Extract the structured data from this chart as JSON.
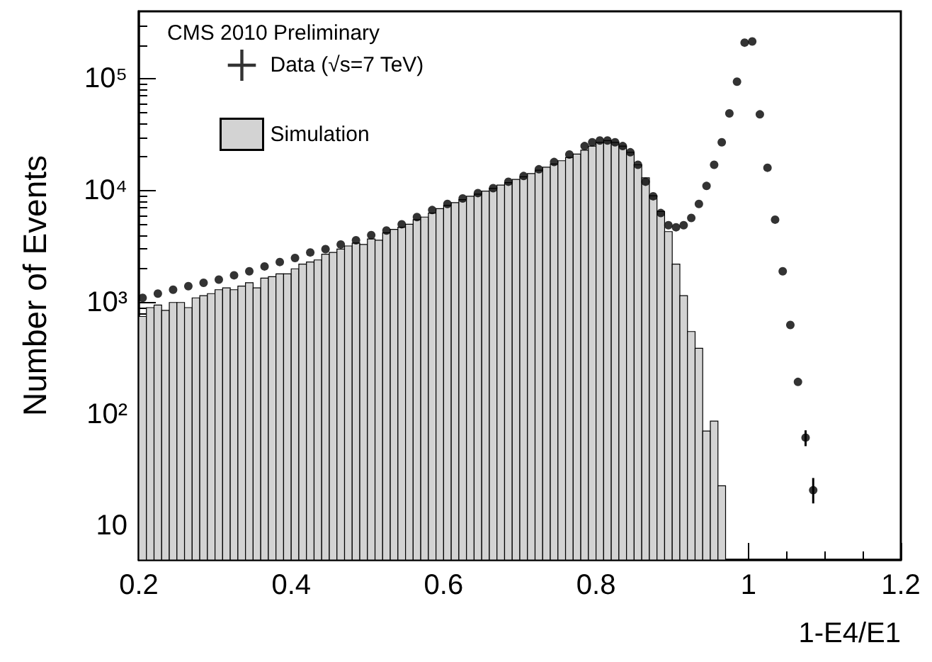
{
  "chart_data": {
    "type": "histogram",
    "xlabel": "1-E4/E1",
    "ylabel": "Number of Events",
    "legend_title": "CMS 2010 Preliminary",
    "legend": "top left",
    "log": "y",
    "grid": false,
    "marker": "circle",
    "xlim": [
      0.2,
      1.2
    ],
    "xticks": [
      0.2,
      0.4,
      0.6,
      0.8,
      1,
      1.2
    ],
    "ylim": [
      5,
      400000
    ],
    "yticks": [
      {
        "value": 10,
        "label": "10"
      },
      {
        "value": 100,
        "label": "10²"
      },
      {
        "value": 1000,
        "label": "10³"
      },
      {
        "value": 10000,
        "label": "10⁴"
      },
      {
        "value": 100000,
        "label": "10⁵"
      }
    ],
    "series": [
      {
        "name": "Simulation",
        "color": "#d3d3d3",
        "bins": [
          0.2,
          0.21,
          0.22,
          0.23,
          0.24,
          0.25,
          0.26,
          0.27,
          0.28,
          0.29,
          0.3,
          0.31,
          0.32,
          0.33,
          0.34,
          0.35,
          0.36,
          0.37,
          0.38,
          0.39,
          0.4,
          0.41,
          0.42,
          0.43,
          0.44,
          0.45,
          0.46,
          0.47,
          0.48,
          0.49,
          0.5,
          0.51,
          0.52,
          0.53,
          0.54,
          0.55,
          0.56,
          0.57,
          0.58,
          0.59,
          0.6,
          0.61,
          0.62,
          0.63,
          0.64,
          0.65,
          0.66,
          0.67,
          0.68,
          0.69,
          0.7,
          0.71,
          0.72,
          0.73,
          0.74,
          0.75,
          0.76,
          0.77,
          0.78,
          0.79,
          0.8,
          0.81,
          0.82,
          0.83,
          0.84,
          0.85,
          0.86,
          0.87,
          0.88,
          0.89,
          0.9,
          0.91,
          0.92,
          0.93,
          0.94,
          0.95,
          0.96,
          0.97
        ],
        "values": [
          750,
          900,
          950,
          850,
          1000,
          1000,
          900,
          1100,
          1150,
          1200,
          1300,
          1350,
          1300,
          1400,
          1500,
          1350,
          1650,
          1700,
          1800,
          1800,
          2000,
          2200,
          2300,
          2400,
          2700,
          2800,
          3000,
          3200,
          3400,
          3300,
          3700,
          3600,
          4200,
          4500,
          4700,
          5000,
          5500,
          5800,
          6300,
          6900,
          7400,
          7800,
          8300,
          8900,
          9300,
          9900,
          10500,
          11200,
          11800,
          12600,
          13300,
          14200,
          15200,
          16200,
          17300,
          18500,
          19800,
          21200,
          23000,
          25000,
          27000,
          28000,
          27000,
          25000,
          22000,
          17000,
          13000,
          9000,
          6500,
          4300,
          2200,
          1150,
          550,
          390,
          71,
          87,
          23
        ]
      },
      {
        "type": "scatter",
        "name": "Data (√s=7 TeV)",
        "color": "#000000",
        "x": [
          0.205,
          0.225,
          0.245,
          0.265,
          0.285,
          0.305,
          0.325,
          0.345,
          0.365,
          0.385,
          0.405,
          0.425,
          0.445,
          0.465,
          0.485,
          0.505,
          0.525,
          0.545,
          0.565,
          0.585,
          0.605,
          0.625,
          0.645,
          0.665,
          0.685,
          0.705,
          0.725,
          0.745,
          0.765,
          0.785,
          0.795,
          0.805,
          0.815,
          0.825,
          0.835,
          0.845,
          0.855,
          0.865,
          0.875,
          0.885,
          0.895,
          0.905,
          0.915,
          0.925,
          0.935,
          0.945,
          0.955,
          0.965,
          0.975,
          0.985,
          0.995,
          1.005,
          1.015,
          1.025,
          1.035,
          1.045,
          1.055,
          1.065,
          1.075,
          1.085
        ],
        "values": [
          1100,
          1200,
          1300,
          1400,
          1500,
          1600,
          1750,
          1900,
          2100,
          2300,
          2500,
          2800,
          3000,
          3300,
          3600,
          4000,
          4400,
          5000,
          5800,
          6700,
          7600,
          8500,
          9500,
          10500,
          12000,
          13500,
          15500,
          18000,
          21000,
          25000,
          27000,
          28000,
          28000,
          27000,
          25000,
          22000,
          17000,
          12000,
          8900,
          6300,
          4900,
          4700,
          4900,
          5700,
          7600,
          11000,
          17000,
          27000,
          49000,
          94000,
          210000,
          215000,
          48000,
          16000,
          5500,
          1900,
          630,
          195,
          62,
          21
        ],
        "errors": [
          null,
          null,
          null,
          null,
          null,
          null,
          null,
          null,
          null,
          null,
          null,
          null,
          null,
          null,
          null,
          null,
          null,
          null,
          null,
          null,
          null,
          null,
          null,
          null,
          null,
          null,
          null,
          null,
          null,
          null,
          null,
          null,
          null,
          null,
          null,
          null,
          null,
          null,
          null,
          null,
          null,
          null,
          null,
          null,
          null,
          null,
          null,
          null,
          null,
          null,
          null,
          null,
          null,
          null,
          null,
          null,
          null,
          null,
          [
            52,
            72
          ],
          [
            16,
            27
          ]
        ]
      }
    ]
  }
}
